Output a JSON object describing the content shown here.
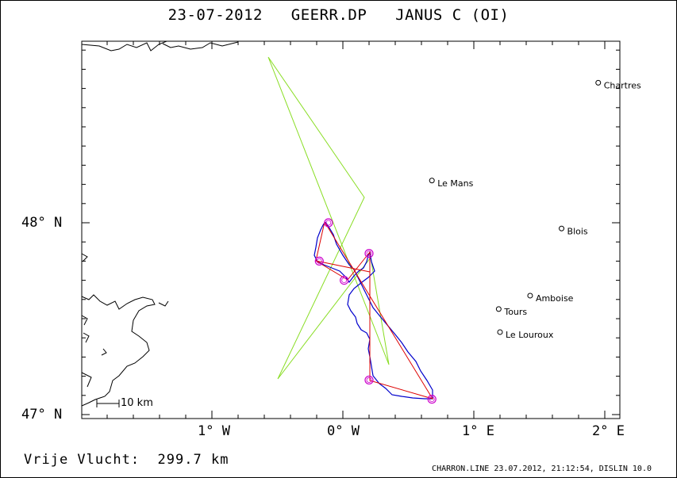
{
  "title": {
    "date": "23-07-2012",
    "file": "GEERR.DP",
    "glider": "JANUS C (OI)"
  },
  "axes": {
    "lat_labels": [
      "48° N",
      "47° N"
    ],
    "lon_labels": [
      "1° W",
      "0° W",
      "1° E",
      "2° E"
    ]
  },
  "cities": [
    {
      "name": "Chartres",
      "lon": 1.95,
      "lat": 48.73
    },
    {
      "name": "Le Mans",
      "lon": 0.68,
      "lat": 48.22
    },
    {
      "name": "Blois",
      "lon": 1.67,
      "lat": 47.97
    },
    {
      "name": "Amboise",
      "lon": 1.43,
      "lat": 47.62
    },
    {
      "name": "Tours",
      "lon": 1.19,
      "lat": 47.55
    },
    {
      "name": "Le Louroux",
      "lon": 1.2,
      "lat": 47.43
    }
  ],
  "scale": {
    "label": "10 km"
  },
  "footer": {
    "distance_label": "Vrije Vlucht:",
    "distance_value": "299.7 km",
    "credit": "CHARRON.LINE 23.07.2012, 21:12:54, DISLIN 10.0"
  },
  "colors": {
    "track": "#0000cc",
    "task": "#dd0000",
    "alt_route": "#88dd22",
    "turnpoint": "#cc00cc",
    "coast": "#000000"
  },
  "turnpoints": [
    {
      "lon": -0.11,
      "lat": 48.0
    },
    {
      "lon": -0.18,
      "lat": 47.8
    },
    {
      "lon": 0.01,
      "lat": 47.7
    },
    {
      "lon": 0.2,
      "lat": 47.84
    },
    {
      "lon": 0.2,
      "lat": 47.18
    },
    {
      "lon": 0.68,
      "lat": 47.08
    }
  ]
}
